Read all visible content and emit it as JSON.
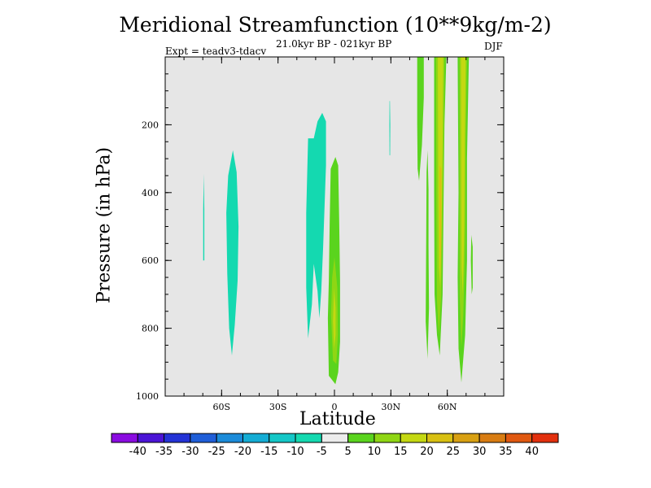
{
  "chart_data": {
    "type": "heatmap",
    "title": "Meridional Streamfunction (10**9kg/m-2)",
    "subtitle": "21.0kyr BP - 021kyr BP",
    "experiment_label": "Expt = teadv3-tdacv",
    "season": "DJF",
    "xlabel": "Latitude",
    "ylabel": "Pressure (in hPa)",
    "xlim": [
      -90,
      90
    ],
    "ylim": [
      1000,
      0
    ],
    "x_ticks": [
      {
        "value": -60,
        "label": "60S"
      },
      {
        "value": -30,
        "label": "30S"
      },
      {
        "value": 0,
        "label": "0"
      },
      {
        "value": 30,
        "label": "30N"
      },
      {
        "value": 60,
        "label": "60N"
      }
    ],
    "y_ticks": [
      {
        "value": 200,
        "label": "200"
      },
      {
        "value": 400,
        "label": "400"
      },
      {
        "value": 600,
        "label": "600"
      },
      {
        "value": 800,
        "label": "800"
      },
      {
        "value": 1000,
        "label": "1000"
      }
    ],
    "background_color": "#e6e6e6",
    "colorbar": {
      "levels": [
        "-40",
        "-35",
        "-30",
        "-25",
        "-20",
        "-15",
        "-10",
        "-5",
        "5",
        "10",
        "15",
        "20",
        "25",
        "30",
        "35",
        "40"
      ],
      "colors": [
        "#8a0ce0",
        "#4b14d6",
        "#2433d6",
        "#1f5ed8",
        "#1b8bd9",
        "#14acd4",
        "#14c7c7",
        "#14d9b0",
        "#ececec",
        "#5ad41e",
        "#8fd614",
        "#c4d812",
        "#d8c012",
        "#d8a012",
        "#d87c12",
        "#e05810",
        "#e2300e"
      ]
    },
    "contour_regions": [
      {
        "level_band": "-10 to -5",
        "color": "#14d9b0",
        "points": [
          [
            -69.5,
            345
          ],
          [
            -69.2,
            450
          ],
          [
            -69.2,
            600
          ],
          [
            -69.8,
            600
          ],
          [
            -69.8,
            450
          ]
        ]
      },
      {
        "level_band": "-10 to -5",
        "color": "#14d9b0",
        "points": [
          [
            -54.0,
            275
          ],
          [
            -52.0,
            340
          ],
          [
            -51.0,
            500
          ],
          [
            -51.5,
            660
          ],
          [
            -53.0,
            790
          ],
          [
            -54.5,
            880
          ],
          [
            -56.0,
            800
          ],
          [
            -57.0,
            640
          ],
          [
            -57.5,
            460
          ],
          [
            -56.5,
            350
          ]
        ]
      },
      {
        "level_band": "-10 to -5",
        "color": "#14d9b0",
        "points": [
          [
            -6.5,
            165
          ],
          [
            -4.5,
            190
          ],
          [
            -4.5,
            320
          ],
          [
            -6.0,
            560
          ],
          [
            -7.0,
            690
          ],
          [
            -8.0,
            770
          ],
          [
            -9.0,
            690
          ],
          [
            -11.0,
            610
          ],
          [
            -12.0,
            730
          ],
          [
            -14.0,
            830
          ],
          [
            -15.0,
            680
          ],
          [
            -15.0,
            460
          ],
          [
            -14.0,
            240
          ],
          [
            -11.0,
            240
          ],
          [
            -9.0,
            190
          ]
        ]
      },
      {
        "level_band": "-10 to -5",
        "color": "#14d9b0",
        "points": [
          [
            29.5,
            130
          ],
          [
            29.7,
            200
          ],
          [
            29.6,
            290
          ],
          [
            29.3,
            290
          ],
          [
            29.2,
            200
          ],
          [
            29.3,
            130
          ]
        ]
      },
      {
        "level_band": "5 to 10",
        "color": "#5ad41e",
        "points": [
          [
            0.5,
            295
          ],
          [
            2.0,
            320
          ],
          [
            2.5,
            480
          ],
          [
            3.0,
            660
          ],
          [
            3.0,
            840
          ],
          [
            2.0,
            930
          ],
          [
            0.5,
            965
          ],
          [
            -3.0,
            940
          ],
          [
            -3.5,
            770
          ],
          [
            -3.0,
            660
          ],
          [
            -2.5,
            480
          ],
          [
            -2.0,
            330
          ]
        ]
      },
      {
        "level_band": "5 to 10",
        "color": "#5ad41e",
        "points": [
          [
            44.0,
            0
          ],
          [
            47.5,
            0
          ],
          [
            47.5,
            120
          ],
          [
            46.5,
            260
          ],
          [
            45.0,
            365
          ],
          [
            44.2,
            330
          ],
          [
            44.0,
            200
          ]
        ]
      },
      {
        "level_band": "5 to 10",
        "color": "#5ad41e",
        "points": [
          [
            49.5,
            275
          ],
          [
            50.0,
            390
          ],
          [
            50.0,
            560
          ],
          [
            50.3,
            740
          ],
          [
            49.5,
            890
          ],
          [
            48.5,
            780
          ],
          [
            48.8,
            520
          ],
          [
            49.0,
            340
          ]
        ]
      },
      {
        "level_band": "5 to 10",
        "color": "#5ad41e",
        "points": [
          [
            53.0,
            0
          ],
          [
            59.5,
            0
          ],
          [
            58.5,
            200
          ],
          [
            58.0,
            450
          ],
          [
            57.5,
            700
          ],
          [
            56.0,
            880
          ],
          [
            54.5,
            820
          ],
          [
            53.2,
            700
          ],
          [
            53.0,
            400
          ]
        ]
      },
      {
        "level_band": "5 to 10",
        "color": "#5ad41e",
        "points": [
          [
            65.5,
            0
          ],
          [
            71.5,
            0
          ],
          [
            70.5,
            300
          ],
          [
            70.5,
            600
          ],
          [
            69.5,
            820
          ],
          [
            67.5,
            960
          ],
          [
            66.0,
            860
          ],
          [
            65.5,
            650
          ],
          [
            66.0,
            400
          ]
        ]
      },
      {
        "level_band": "5 to 10",
        "color": "#5ad41e",
        "points": [
          [
            72.8,
            525
          ],
          [
            73.5,
            560
          ],
          [
            73.5,
            680
          ],
          [
            73.0,
            700
          ],
          [
            72.5,
            600
          ]
        ]
      },
      {
        "level_band": "10 to 15",
        "color": "#8fd614",
        "points": [
          [
            0.0,
            590
          ],
          [
            1.5,
            680
          ],
          [
            1.8,
            820
          ],
          [
            1.0,
            905
          ],
          [
            -0.8,
            895
          ],
          [
            -1.8,
            760
          ],
          [
            -1.2,
            650
          ]
        ]
      },
      {
        "level_band": "10 to 15",
        "color": "#8fd614",
        "points": [
          [
            54.0,
            0
          ],
          [
            58.5,
            0
          ],
          [
            58.2,
            200
          ],
          [
            57.5,
            450
          ],
          [
            56.8,
            700
          ],
          [
            55.5,
            820
          ],
          [
            54.5,
            720
          ],
          [
            54.2,
            450
          ]
        ]
      },
      {
        "level_band": "10 to 15",
        "color": "#8fd614",
        "points": [
          [
            66.5,
            0
          ],
          [
            70.5,
            0
          ],
          [
            69.8,
            250
          ],
          [
            69.5,
            550
          ],
          [
            68.5,
            760
          ],
          [
            67.5,
            860
          ],
          [
            66.6,
            700
          ],
          [
            66.5,
            400
          ]
        ]
      },
      {
        "level_band": "15 to 20",
        "color": "#c4d812",
        "points": [
          [
            -0.2,
            680
          ],
          [
            0.6,
            740
          ],
          [
            0.6,
            820
          ],
          [
            -0.2,
            860
          ],
          [
            -0.8,
            780
          ]
        ]
      },
      {
        "level_band": "15 to 20",
        "color": "#c4d812",
        "points": [
          [
            55.0,
            0
          ],
          [
            57.8,
            0
          ],
          [
            57.5,
            250
          ],
          [
            57.0,
            500
          ],
          [
            56.3,
            680
          ],
          [
            55.5,
            620
          ],
          [
            55.2,
            400
          ]
        ]
      },
      {
        "level_band": "15 to 20",
        "color": "#c4d812",
        "points": [
          [
            67.3,
            0
          ],
          [
            69.8,
            0
          ],
          [
            69.3,
            250
          ],
          [
            69.0,
            500
          ],
          [
            68.3,
            700
          ],
          [
            67.6,
            620
          ],
          [
            67.4,
            400
          ]
        ]
      },
      {
        "level_band": "20 to 25",
        "color": "#d8c012",
        "points": [
          [
            55.8,
            320
          ],
          [
            56.9,
            330
          ],
          [
            56.7,
            560
          ],
          [
            56.2,
            640
          ],
          [
            55.8,
            540
          ]
        ]
      }
    ]
  }
}
